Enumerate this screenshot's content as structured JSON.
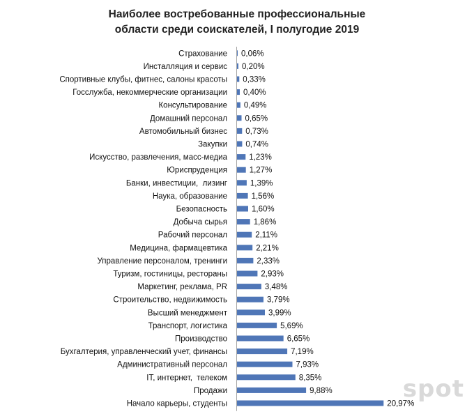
{
  "chart_data": {
    "type": "bar",
    "orientation": "horizontal",
    "title_lines": [
      "Наиболее востребованные профессиональные",
      "области среди соискателей, I полугодие 2019"
    ],
    "categories": [
      "Страхование",
      "Инсталляция и сервис",
      "Спортивные клубы, фитнес, салоны красоты",
      "Госслужба, некоммерческие организации",
      "Консультирование",
      "Домашний персонал",
      "Автомобильный бизнес",
      "Закупки",
      "Искусство, развлечения, масс-медиа",
      "Юриспруденция",
      "Банки, инвестиции,  лизинг",
      "Наука, образование",
      "Безопасность",
      "Добыча сырья",
      "Рабочий персонал",
      "Медицина, фармацевтика",
      "Управление персоналом, тренинги",
      "Туризм, гостиницы, рестораны",
      "Маркетинг, реклама, PR",
      "Строительство, недвижимость",
      "Высший менеджмент",
      "Транспорт, логистика",
      "Производство",
      "Бухгалтерия, управленческий учет, финансы",
      "Административный персонал",
      "IT, интернет,  телеком",
      "Продажи",
      "Начало карьеры, студенты"
    ],
    "values": [
      0.06,
      0.2,
      0.33,
      0.4,
      0.49,
      0.65,
      0.73,
      0.74,
      1.23,
      1.27,
      1.39,
      1.56,
      1.6,
      1.86,
      2.11,
      2.21,
      2.33,
      2.93,
      3.48,
      3.79,
      3.99,
      5.69,
      6.65,
      7.19,
      7.93,
      8.35,
      9.88,
      20.97
    ],
    "value_labels": [
      "0,06%",
      "0,20%",
      "0,33%",
      "0,40%",
      "0,49%",
      "0,65%",
      "0,73%",
      "0,74%",
      "1,23%",
      "1,27%",
      "1,39%",
      "1,56%",
      "1,60%",
      "1,86%",
      "2,11%",
      "2,21%",
      "2,33%",
      "2,93%",
      "3,48%",
      "3,79%",
      "3,99%",
      "5,69%",
      "6,65%",
      "7,19%",
      "7,93%",
      "8,35%",
      "9,88%",
      "20,97%"
    ],
    "unit": "%",
    "xlim": [
      0,
      21
    ],
    "grid": false,
    "legend": "none",
    "bar_color": "#4f76b7"
  },
  "watermark": "spot"
}
